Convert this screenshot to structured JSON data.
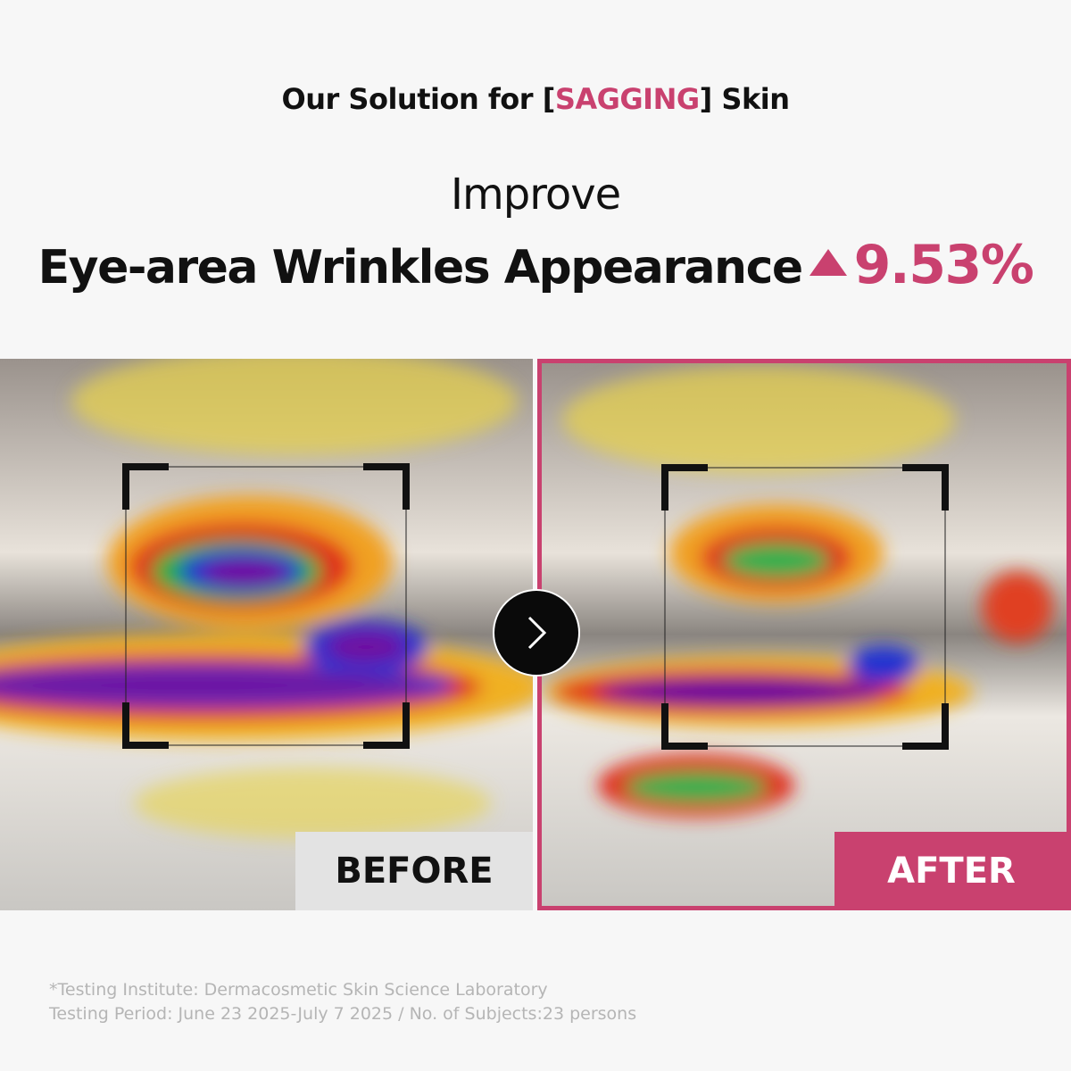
{
  "header": {
    "title_prefix": "Our Solution for [",
    "title_highlight": "SAGGING",
    "title_suffix": "] Skin",
    "line1": "Improve",
    "line2": "Eye-area Wrinkles Appearance",
    "result": "9.53%"
  },
  "panels": {
    "before": "BEFORE",
    "after": "AFTER"
  },
  "footnote": {
    "line1": "*Testing Institute: Dermacosmetic Skin Science Laboratory",
    "line2": "Testing Period: June 23 2025-July 7 2025 / No. of Subjects:23 persons"
  }
}
